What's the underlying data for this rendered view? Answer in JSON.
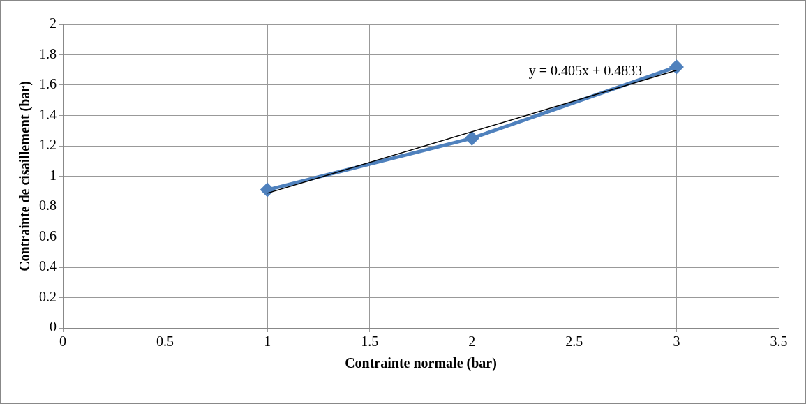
{
  "chart_data": {
    "type": "line",
    "xlabel": "Contrainte normale (bar)",
    "ylabel": "Contrainte de cisaillement (bar)",
    "x": [
      1,
      2,
      3
    ],
    "series": [
      {
        "color": "#4f81bd",
        "values": [
          0.91,
          1.25,
          1.72
        ],
        "marker": "diamond"
      },
      {
        "color": "#000000",
        "x": [
          1,
          3
        ],
        "values": [
          0.888,
          1.698
        ],
        "marker": "none"
      }
    ],
    "xlim": [
      0,
      3.5
    ],
    "xticks": [
      0,
      0.5,
      1,
      1.5,
      2,
      2.5,
      3,
      3.5
    ],
    "ylim": [
      0,
      2
    ],
    "yticks": [
      0,
      0.2,
      0.4,
      0.6,
      0.8,
      1,
      1.2,
      1.4,
      1.6,
      1.8,
      2
    ],
    "grid": true,
    "legend": false,
    "annotations": [
      "y = 0.405x + 0.4833"
    ]
  }
}
